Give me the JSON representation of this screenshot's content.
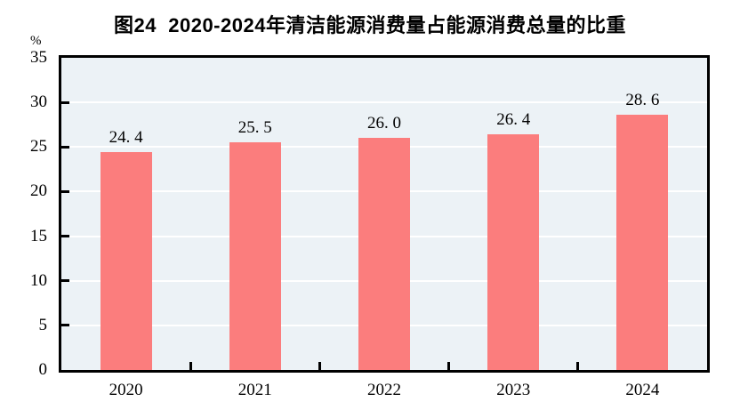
{
  "title": "图24  2020-2024年清洁能源消费量占能源消费总量的比重",
  "axes": {
    "y_unit": "%",
    "y_ticks": [
      0,
      5,
      10,
      15,
      20,
      25,
      30,
      35
    ],
    "x_tick_labels": [
      "2020",
      "2021",
      "2022",
      "2023",
      "2024"
    ]
  },
  "colors": {
    "bar": "#FB7D7D",
    "plot_background": "#ECF2F6",
    "gridline": "#FFFFFF",
    "axis_frame": "#000000",
    "text": "#000000"
  },
  "chart_data": {
    "type": "bar",
    "categories": [
      "2020",
      "2021",
      "2022",
      "2023",
      "2024"
    ],
    "values": [
      24.4,
      25.5,
      26.0,
      26.4,
      28.6
    ],
    "value_labels": [
      "24. 4",
      "25. 5",
      "26. 0",
      "26. 4",
      "28. 6"
    ],
    "title": "图24  2020-2024年清洁能源消费量占能源消费总量的比重",
    "xlabel": "",
    "ylabel": "%",
    "ylim": [
      0,
      35
    ],
    "ytick_interval": 5,
    "grid": true,
    "gridline_style": "horizontal-white",
    "legend_position": "none"
  }
}
